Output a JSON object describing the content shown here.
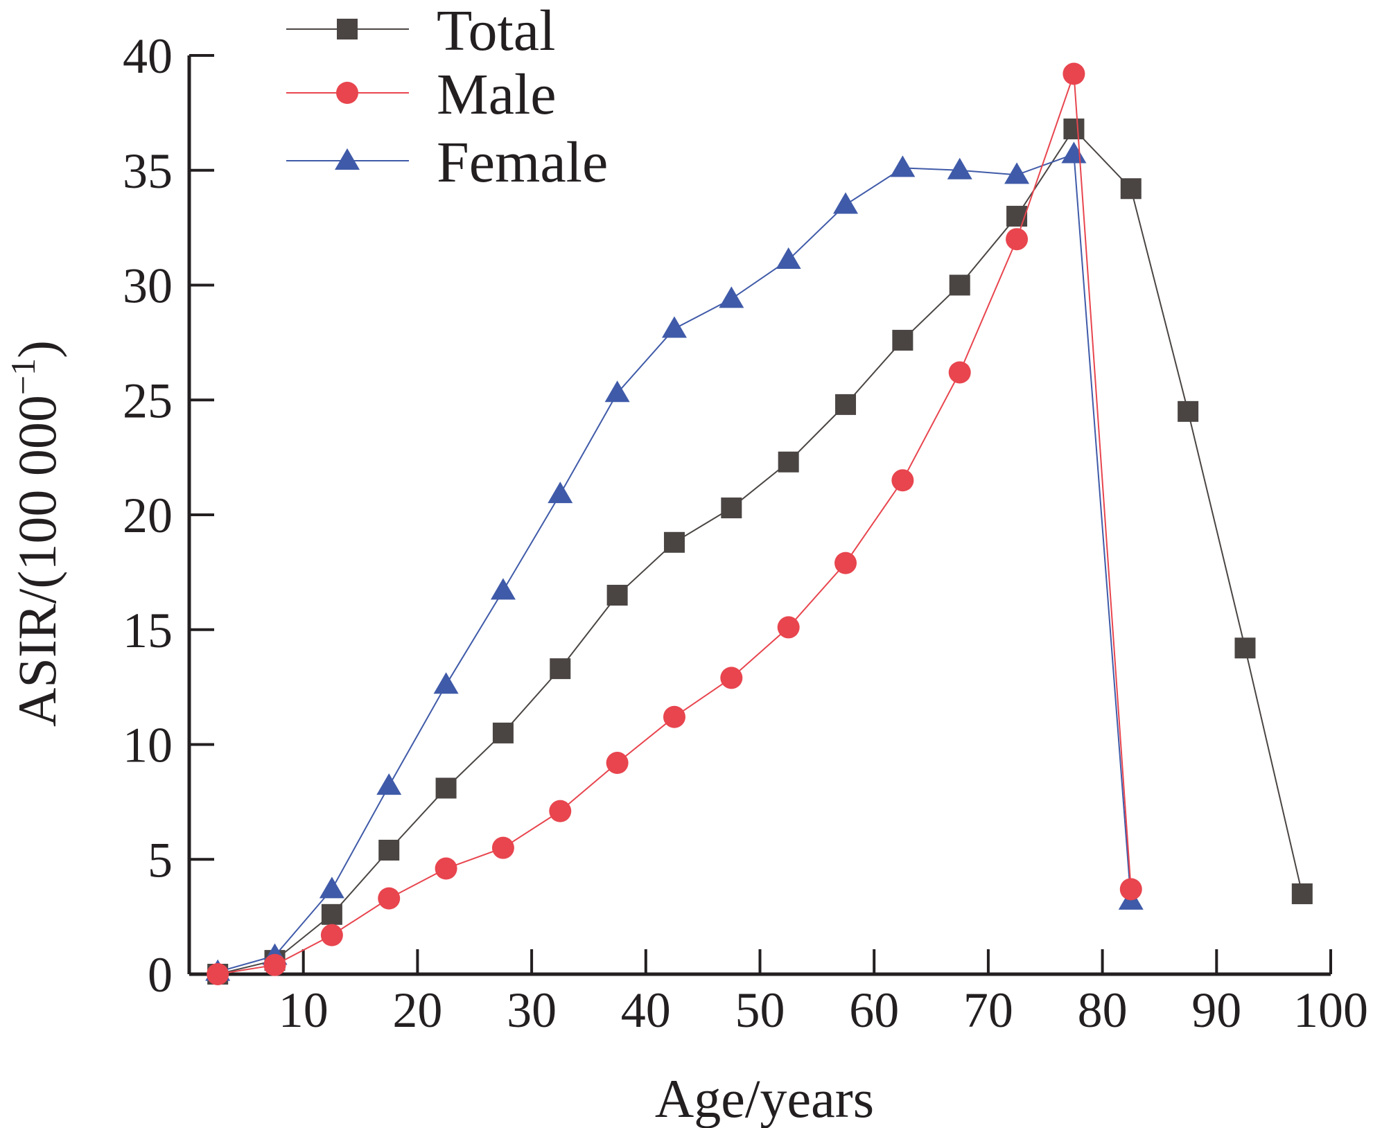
{
  "chart_data": {
    "type": "line",
    "title": "",
    "xlabel": "Age/years",
    "ylabel_main": "ASIR/(100 000",
    "ylabel_sup": "−1",
    "ylabel_close": ")",
    "xlim": [
      0,
      100
    ],
    "ylim": [
      0,
      40
    ],
    "xticks": [
      10,
      20,
      30,
      40,
      50,
      60,
      70,
      80,
      90,
      100
    ],
    "yticks": [
      0,
      5,
      10,
      15,
      20,
      25,
      30,
      35,
      40
    ],
    "grid": false,
    "legend_position": "top-left",
    "series": [
      {
        "name": "Total",
        "color": "#4a4543",
        "marker": "square",
        "x": [
          2.5,
          7.5,
          12.5,
          17.5,
          22.5,
          27.5,
          32.5,
          37.5,
          42.5,
          47.5,
          52.5,
          57.5,
          62.5,
          67.5,
          72.5,
          77.5,
          82.5,
          87.5,
          92.5,
          97.5
        ],
        "values": [
          0.0,
          0.6,
          2.6,
          5.4,
          8.1,
          10.5,
          13.3,
          16.5,
          18.8,
          20.3,
          22.3,
          24.8,
          27.6,
          30.0,
          33.0,
          36.8,
          34.2,
          24.5,
          14.2,
          3.5
        ]
      },
      {
        "name": "Male",
        "color": "#e8454e",
        "marker": "circle",
        "x": [
          2.5,
          7.5,
          12.5,
          17.5,
          22.5,
          27.5,
          32.5,
          37.5,
          42.5,
          47.5,
          52.5,
          57.5,
          62.5,
          67.5,
          72.5,
          77.5,
          82.5
        ],
        "values": [
          0.0,
          0.4,
          1.7,
          3.3,
          4.6,
          5.5,
          7.1,
          9.2,
          11.2,
          12.9,
          15.1,
          17.9,
          21.5,
          26.2,
          32.0,
          39.2,
          3.7
        ]
      },
      {
        "name": "Female",
        "color": "#3f5aa8",
        "marker": "triangle",
        "x": [
          2.5,
          7.5,
          12.5,
          17.5,
          22.5,
          27.5,
          32.5,
          37.5,
          42.5,
          47.5,
          52.5,
          57.5,
          62.5,
          67.5,
          72.5,
          77.5,
          82.5
        ],
        "values": [
          0.1,
          0.8,
          3.7,
          8.2,
          12.6,
          16.7,
          20.9,
          25.3,
          28.1,
          29.4,
          31.1,
          33.5,
          35.1,
          35.0,
          34.8,
          35.7,
          3.2
        ]
      }
    ]
  }
}
